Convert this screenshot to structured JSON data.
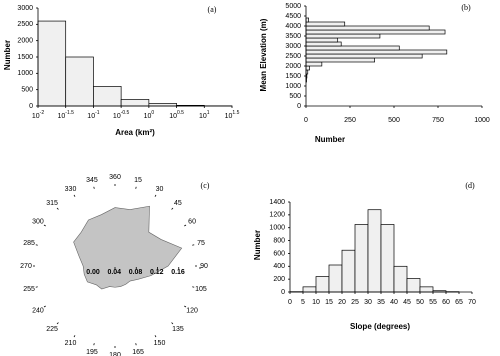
{
  "chart_data": [
    {
      "type": "histogram",
      "panel_label": "(a)",
      "xlabel": "Area (km²)",
      "ylabel": "Number",
      "bins": [
        0.01,
        0.0316,
        0.1,
        0.316,
        1,
        3.16,
        10,
        31.6
      ],
      "values": [
        2600,
        1500,
        600,
        200,
        80,
        20,
        5
      ],
      "xscale": "log",
      "xlim": [
        0.01,
        31.6
      ],
      "xticks": [
        {
          "value": 0.01,
          "label": "10",
          "exponent": "-2"
        },
        {
          "value": 0.0316,
          "label": "10",
          "exponent": "-1.5"
        },
        {
          "value": 0.1,
          "label": "10",
          "exponent": "-1"
        },
        {
          "value": 0.316,
          "label": "10",
          "exponent": "-0.5"
        },
        {
          "value": 1,
          "label": "10",
          "exponent": "0"
        },
        {
          "value": 3.16,
          "label": "10",
          "exponent": "0.5"
        },
        {
          "value": 10,
          "label": "10",
          "exponent": "1"
        },
        {
          "value": 31.6,
          "label": "10",
          "exponent": "1.5"
        }
      ],
      "ylim": [
        0,
        3000
      ],
      "yticks": [
        0,
        500,
        1000,
        1500,
        2000,
        2500,
        3000
      ],
      "color": "#f0f0f0"
    },
    {
      "type": "histogram",
      "orientation": "horizontal",
      "panel_label": "(b)",
      "xlabel": "Number",
      "ylabel": "Mean Elevation (m)",
      "bins": [
        1200,
        1400,
        1600,
        1800,
        2000,
        2200,
        2400,
        2600,
        2800,
        3000,
        3200,
        3400,
        3600,
        3800,
        4000,
        4200,
        4400
      ],
      "values": [
        3,
        5,
        10,
        20,
        90,
        390,
        660,
        800,
        530,
        200,
        180,
        420,
        790,
        700,
        220,
        15
      ],
      "xlim": [
        0,
        1000
      ],
      "xticks": [
        0,
        250,
        500,
        750,
        1000
      ],
      "ylim": [
        0,
        5000
      ],
      "yticks": [
        0,
        500,
        1000,
        1500,
        2000,
        2500,
        3000,
        3500,
        4000,
        4500,
        5000
      ],
      "color": "#f0f0f0"
    },
    {
      "type": "polar",
      "panel_label": "(c)",
      "angles": [
        360,
        15,
        30,
        45,
        60,
        75,
        90,
        105,
        120,
        135,
        150,
        165,
        180,
        195,
        210,
        225,
        240,
        255,
        270,
        285,
        300,
        315,
        330,
        345
      ],
      "values": [
        0.11,
        0.11,
        0.13,
        0.09,
        0.1,
        0.13,
        0.1,
        0.07,
        0.05,
        0.04,
        0.04,
        0.04,
        0.04,
        0.04,
        0.05,
        0.05,
        0.06,
        0.06,
        0.06,
        0.07,
        0.09,
        0.09,
        0.1,
        0.1
      ],
      "rlim": [
        0,
        0.16
      ],
      "rticks": [
        {
          "value": 0,
          "label": "0.00"
        },
        {
          "value": 0.04,
          "label": "0.04"
        },
        {
          "value": 0.08,
          "label": "0.08"
        },
        {
          "value": 0.12,
          "label": "0.12"
        },
        {
          "value": 0.16,
          "label": "0.16"
        }
      ],
      "color": "#c4c4c4"
    },
    {
      "type": "histogram",
      "panel_label": "(d)",
      "xlabel": "Slope (degrees)",
      "ylabel": "Number",
      "bins": [
        0,
        5,
        10,
        15,
        20,
        25,
        30,
        35,
        40,
        45,
        50,
        55,
        60,
        65
      ],
      "values": [
        5,
        80,
        240,
        420,
        650,
        1050,
        1280,
        1050,
        400,
        210,
        80,
        20,
        5
      ],
      "xlim": [
        0,
        70
      ],
      "xticks": [
        0,
        5,
        10,
        15,
        20,
        25,
        30,
        35,
        40,
        45,
        50,
        55,
        60,
        65,
        70
      ],
      "ylim": [
        0,
        1400
      ],
      "yticks": [
        0,
        200,
        400,
        600,
        800,
        1000,
        1200,
        1400
      ],
      "color": "#f0f0f0"
    }
  ]
}
